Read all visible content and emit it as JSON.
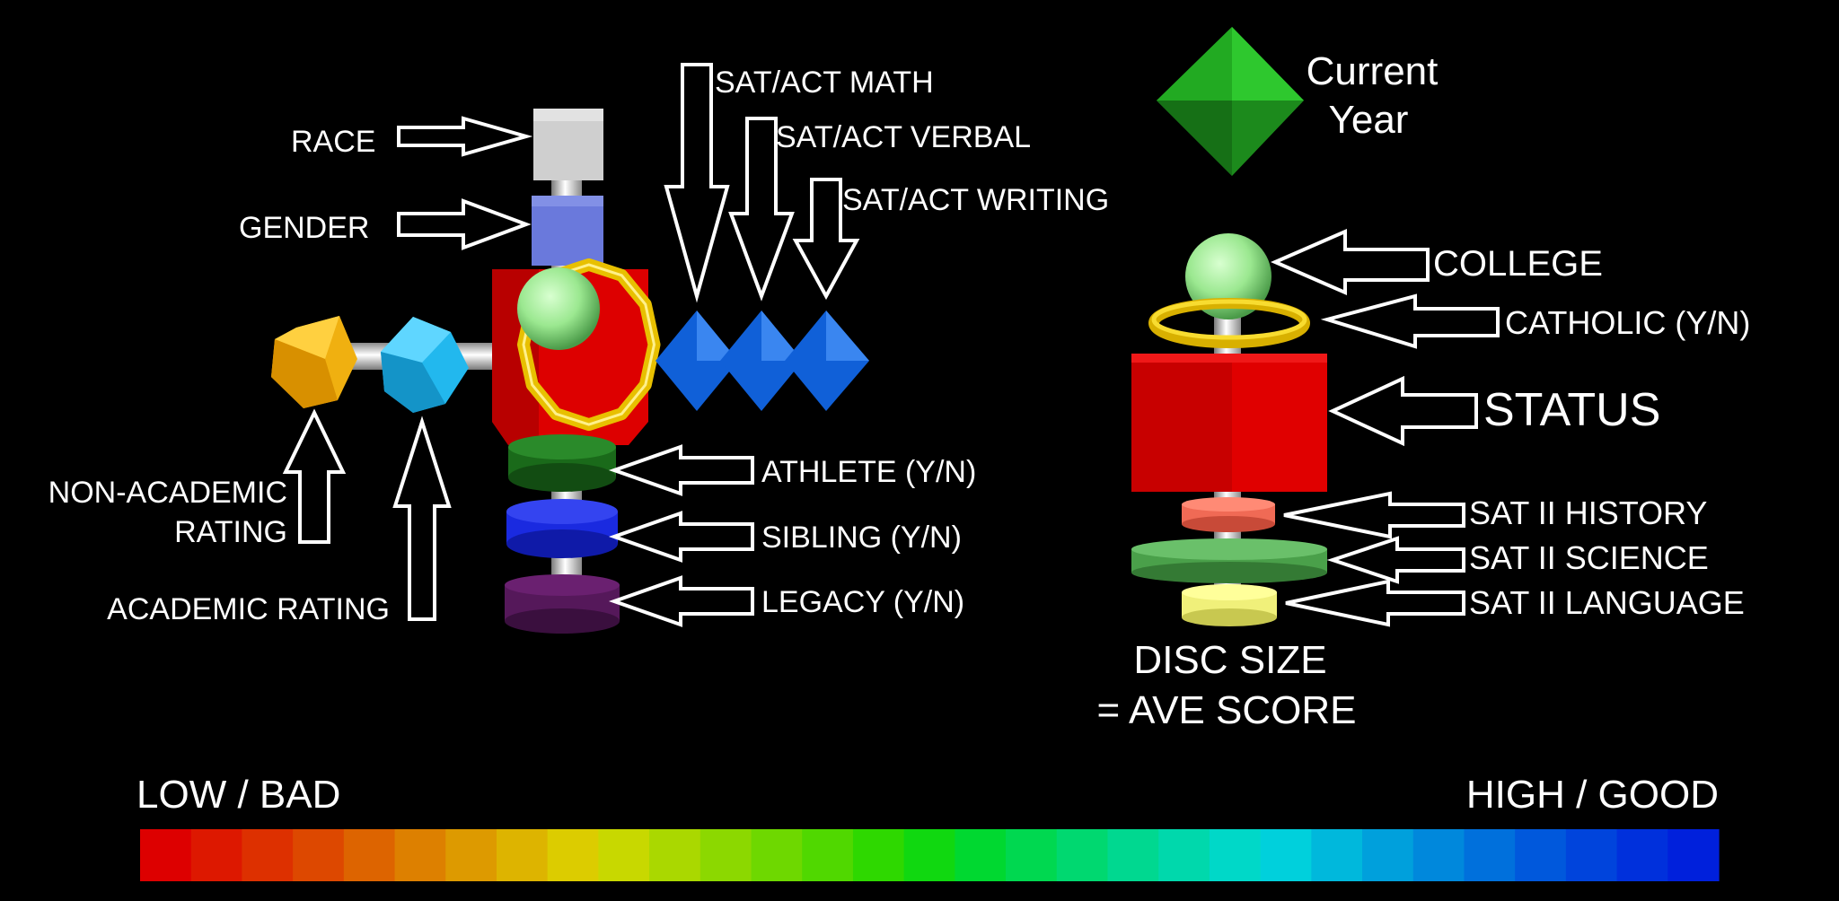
{
  "colors": {
    "background": "#000000",
    "text": "#ffffff",
    "race": "#cccccc",
    "gender": "#6677dd",
    "status": "#dd0000",
    "college": "#a8f0a0",
    "catholic_ring": "#f0c800",
    "athlete": "#1a6a1a",
    "sibling": "#1a2ae0",
    "legacy": "#55185a",
    "non_academic": "#f0b010",
    "academic": "#22b8ee",
    "sat_act": "#1060d8",
    "current_year": "#22c022",
    "sat2_history": "#f06a55",
    "sat2_science": "#4aa04a",
    "sat2_language": "#f0f07a"
  },
  "icons": {
    "current_year": "green-octahedron-icon",
    "college": "sphere-icon",
    "status": "cube-icon",
    "catholic": "ring-icon",
    "disc": "disc-icon"
  },
  "glyph": {
    "race": "RACE",
    "gender": "GENDER",
    "non_academic_line1": "NON-ACADEMIC",
    "non_academic_line2": "RATING",
    "academic": "ACADEMIC RATING",
    "sat_math": "SAT/ACT MATH",
    "sat_verbal": "SAT/ACT VERBAL",
    "sat_writing": "SAT/ACT WRITING",
    "athlete": "ATHLETE (Y/N)",
    "sibling": "SIBLING (Y/N)",
    "legacy": "LEGACY (Y/N)"
  },
  "legend": {
    "current_line1": "Current",
    "current_line2": "Year",
    "college": "COLLEGE",
    "catholic": "CATHOLIC (Y/N)",
    "status": "STATUS",
    "sat2_history": "SAT II HISTORY",
    "sat2_science": "SAT II SCIENCE",
    "sat2_language": "SAT II LANGUAGE",
    "disc_line1": "DISC SIZE",
    "disc_line2": "= AVE SCORE"
  },
  "scale": {
    "low_label": "LOW / BAD",
    "high_label": "HIGH / GOOD",
    "colors": [
      "#dd0000",
      "#dd1800",
      "#dd3000",
      "#dd4800",
      "#dd6400",
      "#dd8000",
      "#dd9a00",
      "#ddb400",
      "#dccc00",
      "#c8d800",
      "#aad800",
      "#8cd800",
      "#6ed800",
      "#50d800",
      "#2ed800",
      "#10d810",
      "#00d830",
      "#00d850",
      "#00d870",
      "#00d890",
      "#00d8ac",
      "#00d8c8",
      "#00d0dc",
      "#00b8dc",
      "#00a0dc",
      "#0088dc",
      "#0070dc",
      "#0058dc",
      "#0044dc",
      "#0030dc",
      "#0020dc"
    ]
  }
}
